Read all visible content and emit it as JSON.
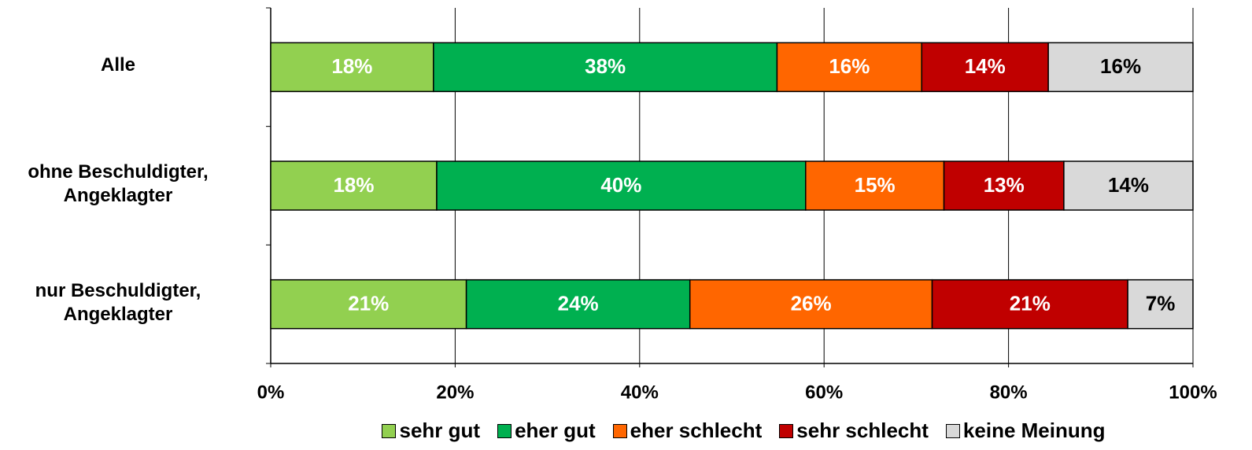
{
  "chart_data": {
    "type": "bar",
    "orientation": "horizontal",
    "stacking": "percent",
    "categories": [
      "Alle",
      "ohne Beschuldigter,\nAngeklagter",
      "nur Beschuldigter,\nAngeklagter"
    ],
    "series": [
      {
        "name": "sehr gut",
        "color": "#92d050",
        "label_color": "#ffffff",
        "values": [
          18,
          18,
          21
        ],
        "value_labels": [
          "18%",
          "18%",
          "21%"
        ]
      },
      {
        "name": "eher gut",
        "color": "#00b050",
        "label_color": "#ffffff",
        "values": [
          38,
          40,
          24
        ],
        "value_labels": [
          "38%",
          "40%",
          "24%"
        ]
      },
      {
        "name": "eher schlecht",
        "color": "#ff6600",
        "label_color": "#ffffff",
        "values": [
          16,
          15,
          26
        ],
        "value_labels": [
          "16%",
          "15%",
          "26%"
        ]
      },
      {
        "name": "sehr schlecht",
        "color": "#c00000",
        "label_color": "#ffffff",
        "values": [
          14,
          13,
          21
        ],
        "value_labels": [
          "14%",
          "13%",
          "21%"
        ]
      },
      {
        "name": "keine Meinung",
        "color": "#d9d9d9",
        "label_color": "#000000",
        "values": [
          16,
          14,
          7
        ],
        "value_labels": [
          "16%",
          "14%",
          "7%"
        ]
      }
    ],
    "xlim": [
      0,
      100
    ],
    "xticks": [
      {
        "value": 0,
        "label": "0%"
      },
      {
        "value": 20,
        "label": "20%"
      },
      {
        "value": 40,
        "label": "40%"
      },
      {
        "value": 60,
        "label": "60%"
      },
      {
        "value": 80,
        "label": "80%"
      },
      {
        "value": 100,
        "label": "100%"
      }
    ],
    "grid": true,
    "legend": "bottom"
  }
}
